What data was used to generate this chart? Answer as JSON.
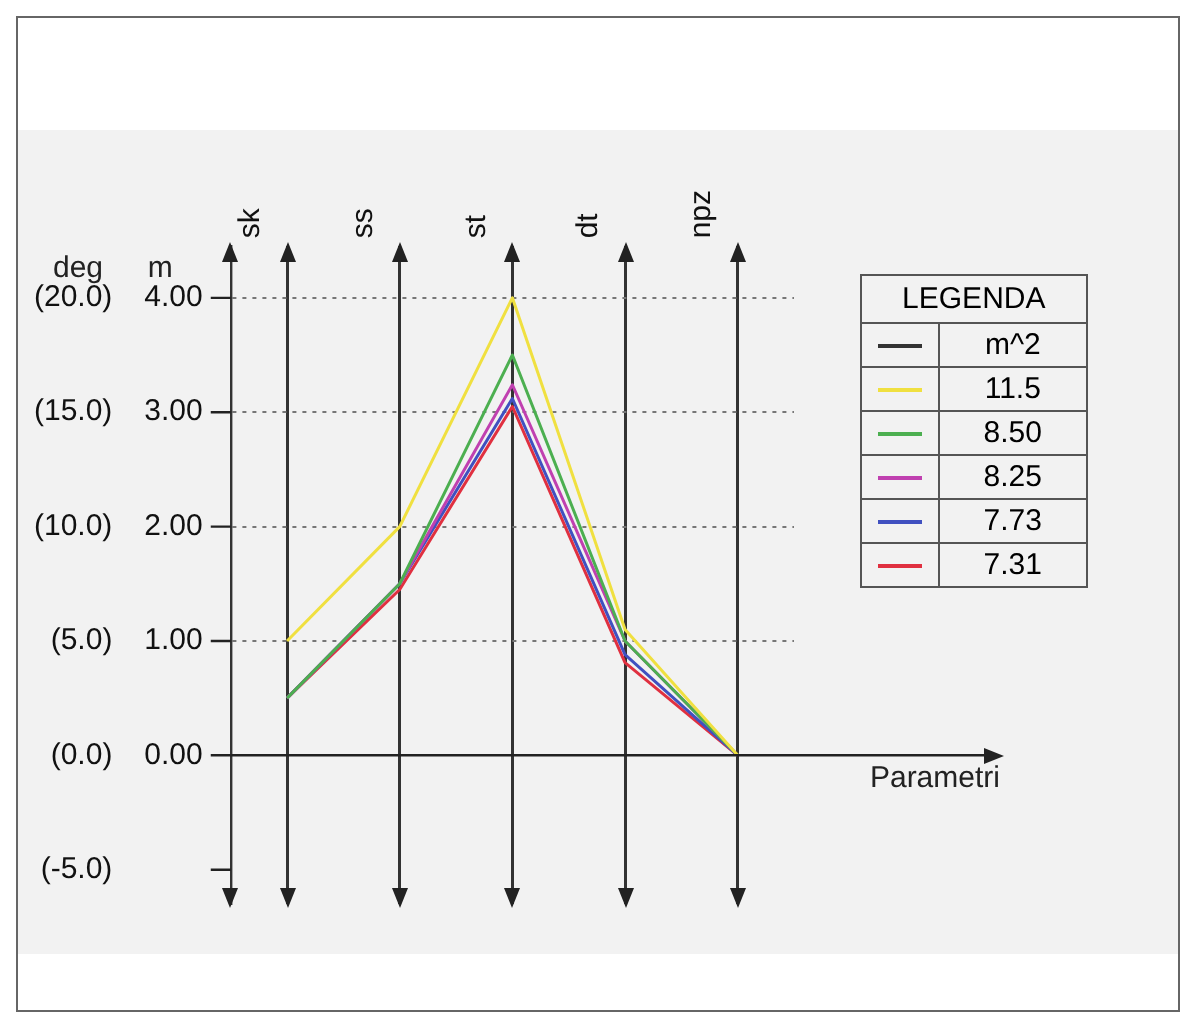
{
  "chart_data": {
    "type": "line",
    "ylabel": "m",
    "y2label": "deg",
    "xlabel": "Parametri",
    "legend_title": "LEGENDA",
    "annotations": [
      "m^2"
    ],
    "categories": [
      "sk",
      "ss",
      "st",
      "dt",
      "npz"
    ],
    "series": [
      {
        "name": "11.5",
        "color": "#f0e040",
        "values": [
          1.0,
          2.0,
          4.0,
          1.1,
          0
        ]
      },
      {
        "name": "8.50",
        "color": "#4caf50",
        "values": [
          0.5,
          1.5,
          3.5,
          1.0,
          0
        ]
      },
      {
        "name": "8.25",
        "color": "#c040b0",
        "values": [
          0.5,
          1.5,
          3.24,
          1.0,
          0
        ]
      },
      {
        "name": "7.73",
        "color": "#4050c0",
        "values": [
          0.5,
          1.5,
          3.12,
          0.88,
          0
        ]
      },
      {
        "name": "7.31",
        "color": "#e03040",
        "values": [
          0.5,
          1.45,
          3.05,
          0.81,
          0
        ]
      }
    ],
    "ylim": [
      -1.3,
      4.45
    ],
    "yticks": [
      {
        "value": 0,
        "label": "0.00"
      },
      {
        "value": 1,
        "label": "1.00"
      },
      {
        "value": 2,
        "label": "2.00"
      },
      {
        "value": 3,
        "label": "3.00"
      },
      {
        "value": 4,
        "label": "4.00"
      }
    ],
    "y2lim": [
      -6.5,
      22.25
    ],
    "y2ticks": [
      {
        "value": -5,
        "label": "(-5.0)"
      },
      {
        "value": 0,
        "label": "(0.0)"
      },
      {
        "value": 5,
        "label": "(5.0)"
      },
      {
        "value": 10,
        "label": "(10.0)"
      },
      {
        "value": 15,
        "label": "(15.0)"
      },
      {
        "value": 20,
        "label": "(20.0)"
      }
    ],
    "grid": true,
    "legend": "right",
    "marker": "none",
    "line_style": "solid"
  }
}
